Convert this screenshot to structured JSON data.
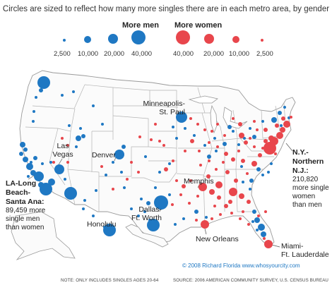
{
  "header": {
    "title": "Circles are sized to reflect how many more singles there are in each metro area, by gender"
  },
  "legend": {
    "men_title": "More men",
    "women_title": "More women",
    "men_values": [
      "2,500",
      "10,000",
      "20,000",
      "40,000"
    ],
    "women_values": [
      "40,000",
      "20,000",
      "10,000",
      "2,500"
    ],
    "men_color": "#1f78c3",
    "women_color": "#e8464c"
  },
  "labels": {
    "minneapolis_1": "Minneapolis-",
    "minneapolis_2": "St. Paul",
    "las_vegas_1": "Las",
    "las_vegas_2": "Vegas",
    "denver": "Denver",
    "memphis": "Memphis",
    "dallas_1": "Dallas-",
    "dallas_2": "Ft. Worth",
    "honolulu": "Honolulu",
    "new_orleans": "New Orleans",
    "miami_1": "Miami-",
    "miami_2": "Ft. Lauderdale"
  },
  "callouts": {
    "la_name_1": "LA-Long",
    "la_name_2": "Beach-",
    "la_name_3": "Santa Ana:",
    "la_text_1": "89,459 more",
    "la_text_2": "single men",
    "la_text_3": "than women",
    "ny_name_1": "N.Y.-",
    "ny_name_2": "Northern",
    "ny_name_3": "N.J.:",
    "ny_text_1": "210,820",
    "ny_text_2": "more single",
    "ny_text_3": "women",
    "ny_text_4": "than men"
  },
  "footer": {
    "credit": "© 2008 Richard Florida  www.whosyourcity.com",
    "note": "NOTE: ONLY INCLUDES SINGLES AGES 20-64",
    "source": "SOURCE: 2006 AMERICAN COMMUNITY SURVEY, U.S. CENSUS BUREAU"
  }
}
